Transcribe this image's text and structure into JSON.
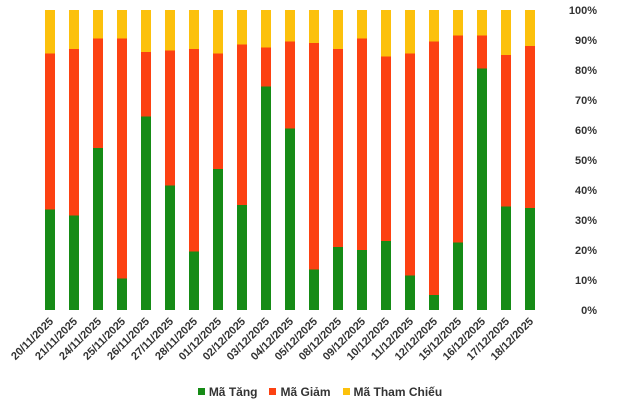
{
  "chart_data": {
    "type": "bar",
    "stacked": true,
    "percent": true,
    "categories": [
      "20/11/2025",
      "21/11/2025",
      "24/11/2025",
      "25/11/2025",
      "26/11/2025",
      "27/11/2025",
      "28/11/2025",
      "01/12/2025",
      "02/12/2025",
      "03/12/2025",
      "04/12/2025",
      "05/12/2025",
      "08/12/2025",
      "09/12/2025",
      "10/12/2025",
      "11/12/2025",
      "12/12/2025",
      "15/12/2025",
      "16/12/2025",
      "17/12/2025",
      "18/12/2025"
    ],
    "series": [
      {
        "name": "Mã Tăng",
        "color": "#168b16",
        "values": [
          33.5,
          31.5,
          54,
          10.5,
          64.5,
          41.5,
          19.5,
          47,
          35,
          74.5,
          60.5,
          13.5,
          21,
          20,
          23,
          11.5,
          5,
          22.5,
          80.5,
          34.5,
          34
        ]
      },
      {
        "name": "Mã Giảm",
        "color": "#fc4112",
        "values": [
          52,
          55.5,
          36.5,
          80,
          21.5,
          45,
          67.5,
          38.5,
          53.5,
          13,
          29,
          75.5,
          66,
          70.5,
          61.5,
          74,
          84.5,
          69,
          11,
          50.5,
          54
        ]
      },
      {
        "name": "Mã Tham Chiếu",
        "color": "#fcc10c",
        "values": [
          14.5,
          13,
          9.5,
          9.5,
          14,
          13.5,
          13,
          14.5,
          11.5,
          12.5,
          10.5,
          11,
          13,
          9.5,
          15.5,
          14.5,
          10.5,
          8.5,
          8.5,
          15,
          12
        ]
      }
    ],
    "y_ticks": [
      "0%",
      "10%",
      "20%",
      "30%",
      "40%",
      "50%",
      "60%",
      "70%",
      "80%",
      "90%",
      "100%"
    ],
    "ylim": [
      0,
      100
    ],
    "grid": false,
    "legend_position": "bottom"
  }
}
